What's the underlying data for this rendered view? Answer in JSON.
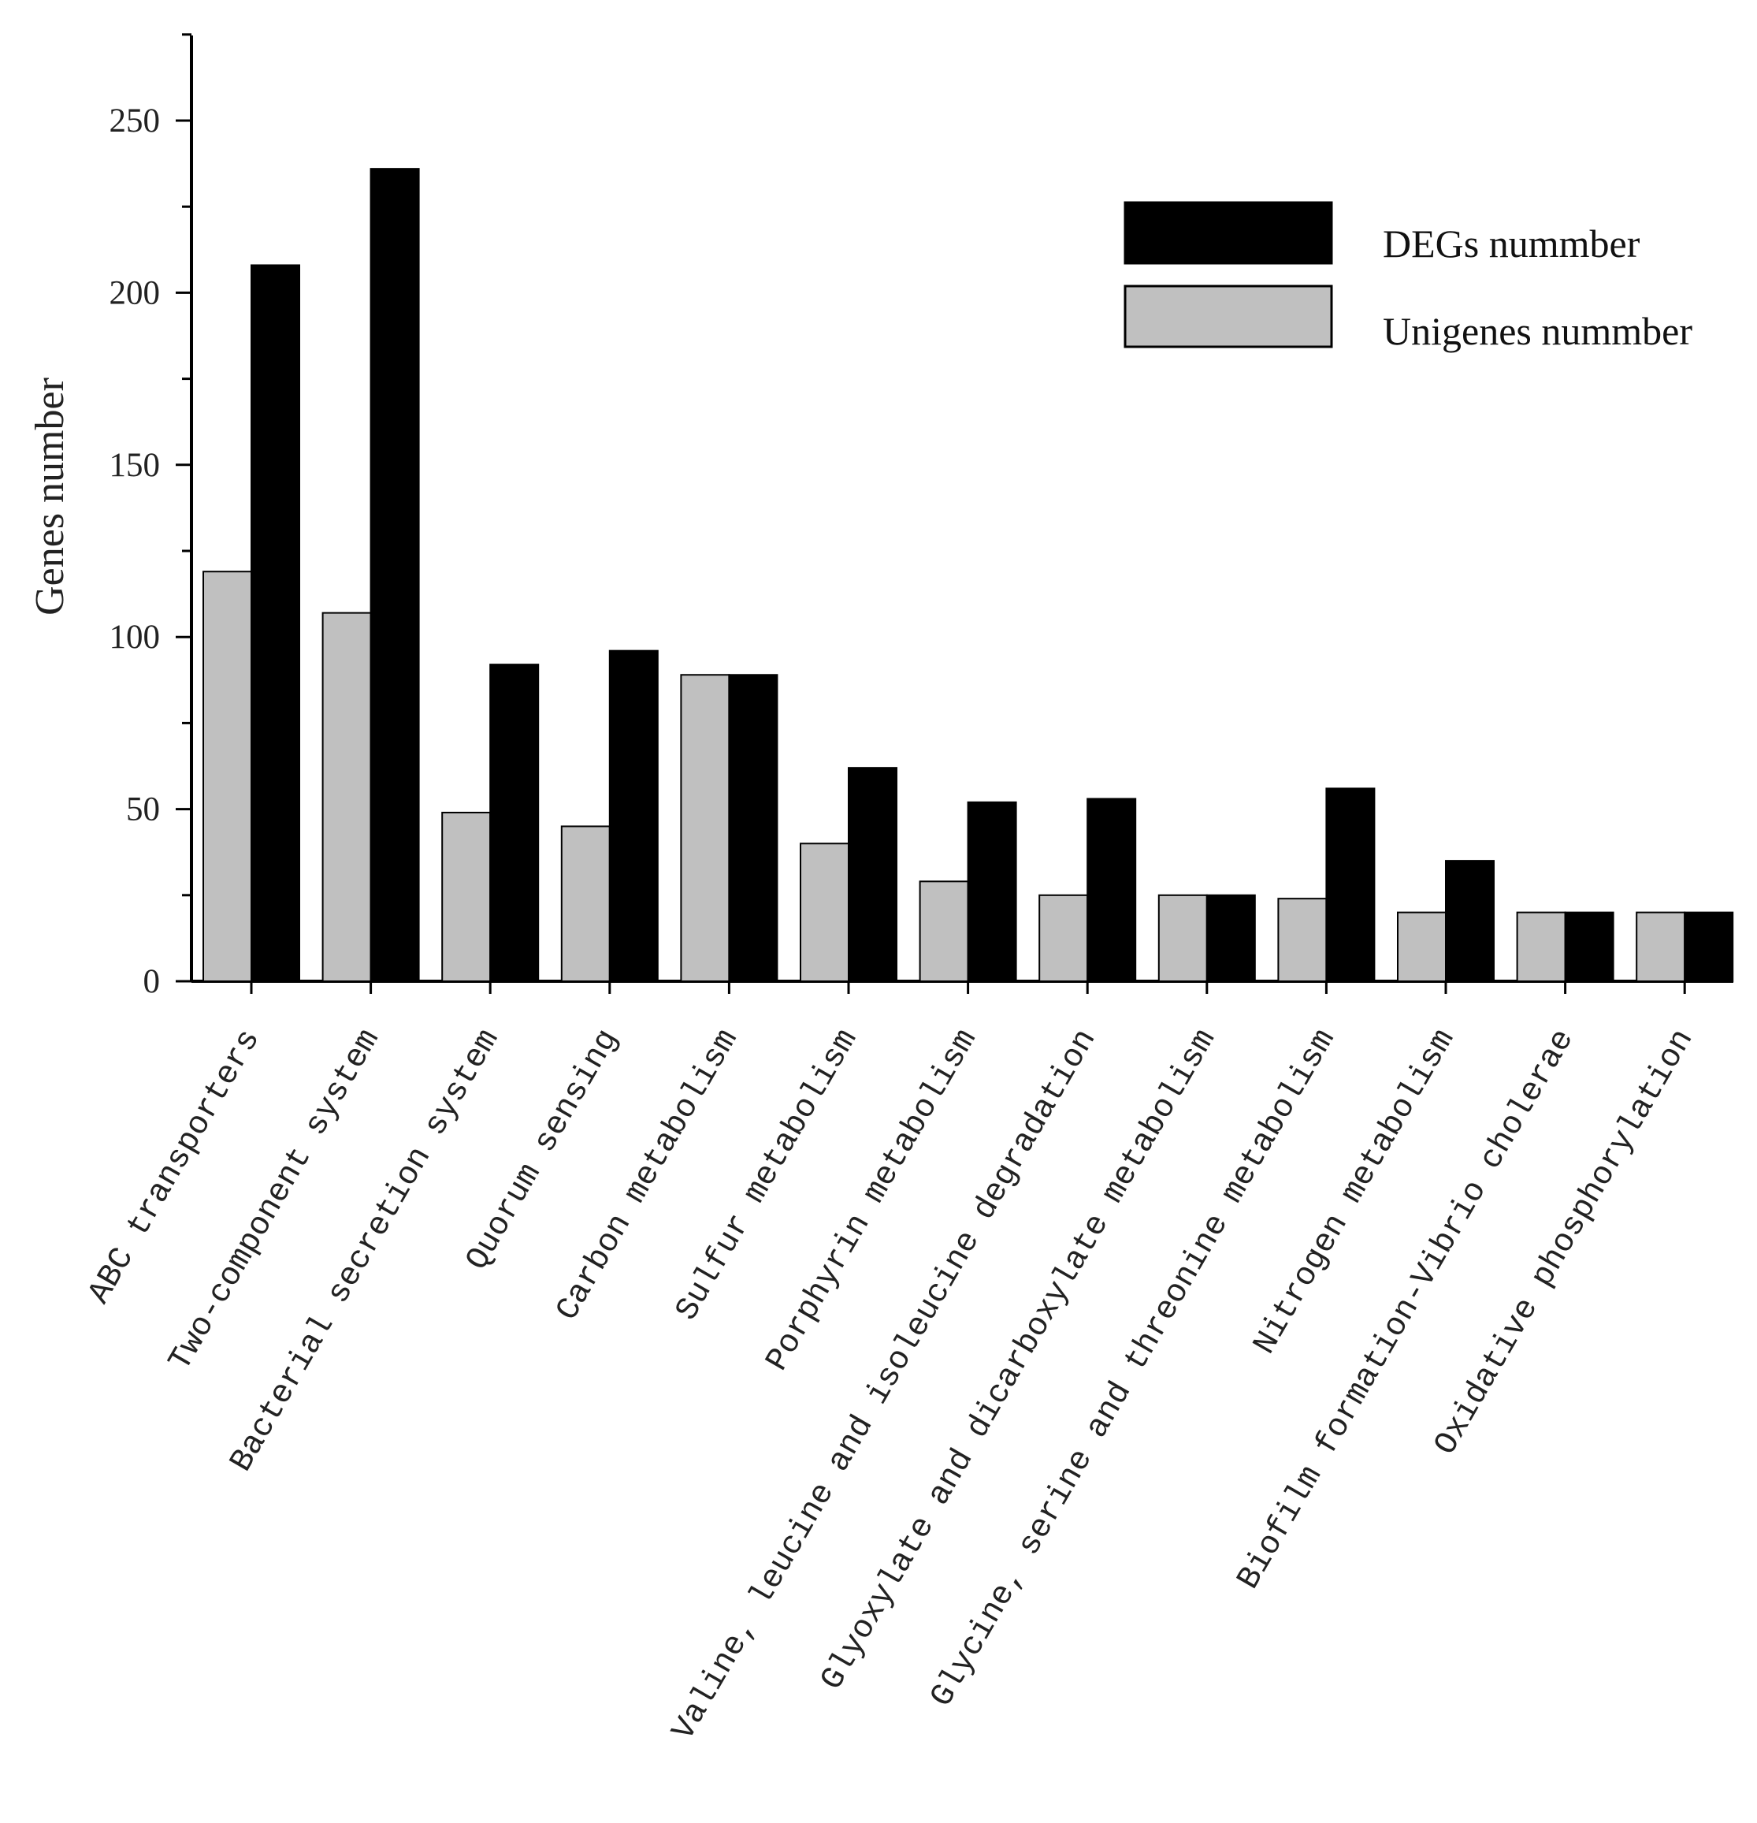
{
  "chart_data": {
    "type": "bar",
    "categories": [
      "ABC transporters",
      "Two-component system",
      "Bacterial secretion system",
      "Quorum sensing",
      "Carbon metabolism",
      "Sulfur metabolism",
      "Porphyrin metabolism",
      "Valine, leucine and isoleucine degradation",
      "Glyoxylate and dicarboxylate metabolism",
      "Glycine, serine and threonine metabolism",
      "Nitrogen metabolism",
      "Biofilm formation-Vibrio cholerae",
      "Oxidative phosphorylation"
    ],
    "series": [
      {
        "name": "Unigenes nummber",
        "color": "#c0c0c0",
        "values": [
          119,
          107,
          49,
          45,
          89,
          40,
          29,
          25,
          25,
          24,
          20,
          20,
          20
        ]
      },
      {
        "name": "DEGs nummber",
        "color": "#000000",
        "values": [
          208,
          236,
          92,
          96,
          89,
          62,
          52,
          53,
          25,
          56,
          35,
          20,
          20
        ]
      }
    ],
    "ylabel": "Genes number",
    "xlabel": "",
    "ylim": [
      0,
      275
    ],
    "yticks": [
      "0",
      "50",
      "100",
      "150",
      "200",
      "250"
    ],
    "legend_position": "top-right",
    "grid": false
  }
}
